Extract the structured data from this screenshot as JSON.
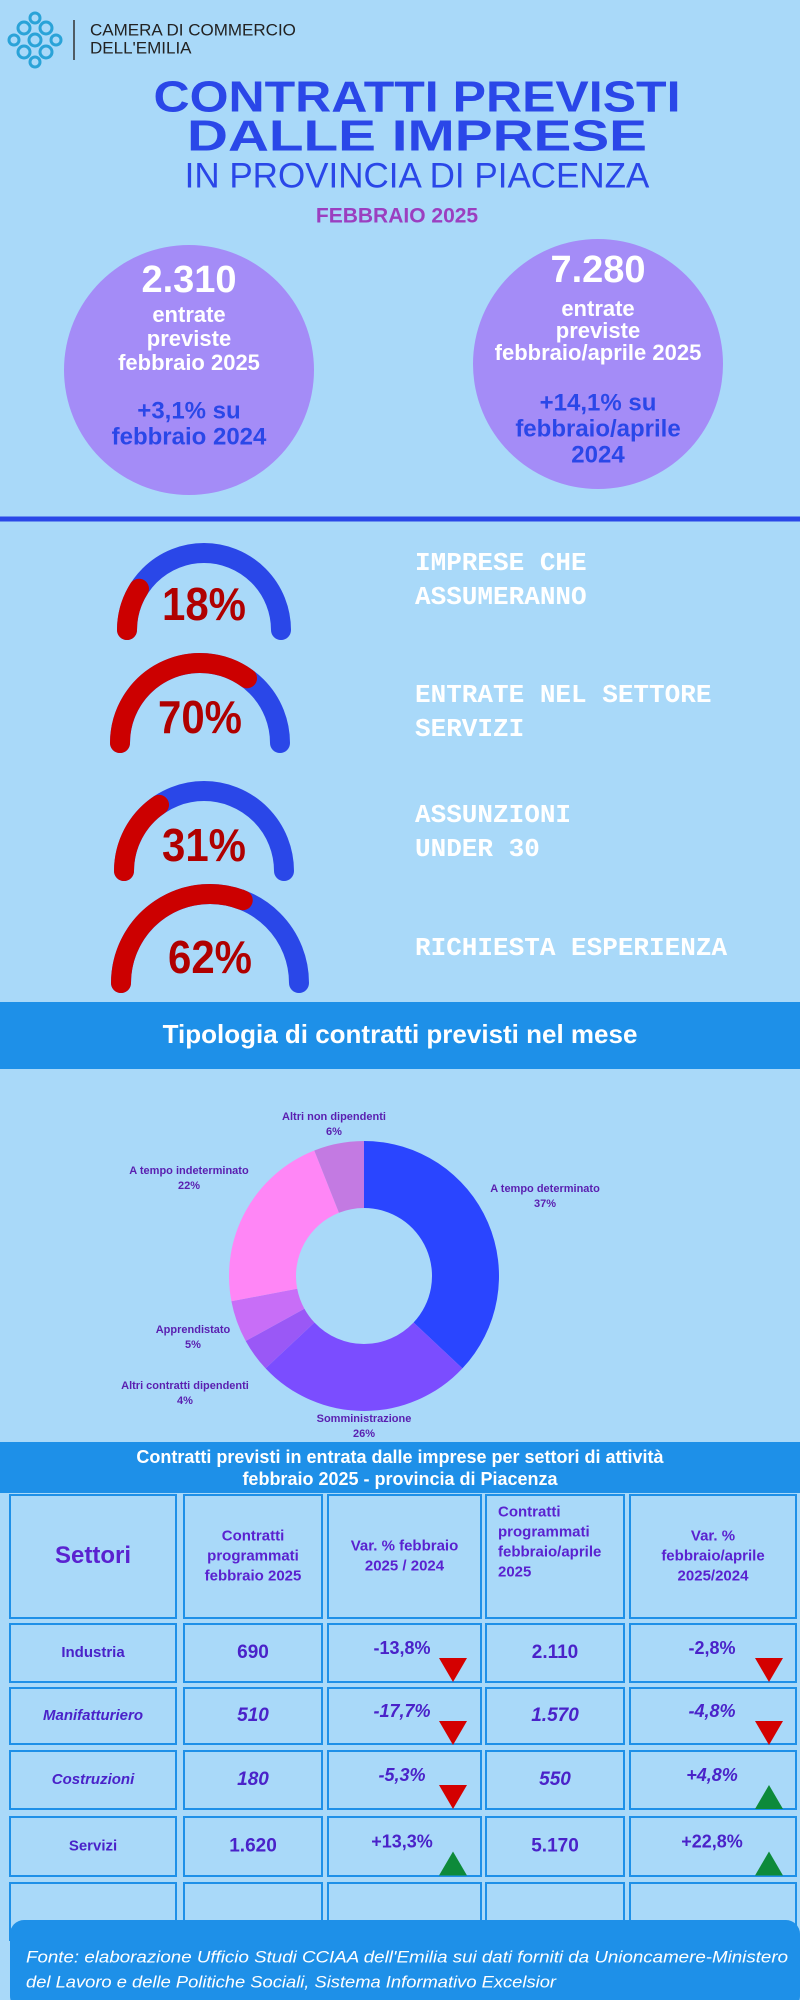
{
  "header": {
    "org": [
      "CAMERA DI COMMERCIO",
      "DELL'EMILIA"
    ],
    "title": [
      "CONTRATTI PREVISTI",
      "DALLE IMPRESE"
    ],
    "subtitle": "IN PROVINCIA DI PIACENZA",
    "period": "FEBBRAIO 2025"
  },
  "highlights": [
    {
      "value": "2.310",
      "lines": [
        "entrate",
        "previste",
        "febbraio 2025"
      ],
      "change": [
        "+3,1% su",
        "febbraio 2024"
      ]
    },
    {
      "value": "7.280",
      "lines": [
        "entrate",
        "previste",
        "febbraio/aprile 2025"
      ],
      "change": [
        "+14,1% su",
        "febbraio/aprile",
        "2024"
      ]
    }
  ],
  "gauges": {
    "values": [
      18,
      70,
      31,
      62
    ],
    "value_labels": [
      "18%",
      "70%",
      "31%",
      "62%"
    ],
    "labels": [
      [
        "IMPRESE CHE",
        "ASSUMERANNO"
      ],
      [
        "ENTRATE NEL SETTORE",
        "SERVIZI"
      ],
      [
        "ASSUNZIONI",
        "UNDER 30"
      ],
      [
        "RICHIESTA ESPERIENZA"
      ]
    ],
    "colors": [
      "#cc0000",
      "#2a47e8"
    ]
  },
  "chart_data": {
    "type": "pie",
    "title": "Tipologia di contratti previsti nel mese",
    "categories": [
      "A tempo determinato",
      "Somministrazione",
      "Altri contratti dipendenti",
      "Apprendistato",
      "A tempo indeterminato",
      "Altri non dipendenti"
    ],
    "values": [
      37,
      26,
      4,
      5,
      22,
      6
    ],
    "value_labels": [
      "37%",
      "26%",
      "4%",
      "5%",
      "22%",
      "6%"
    ],
    "colors": [
      "#2a45ff",
      "#7b4dff",
      "#9a58f6",
      "#c86ef7",
      "#ff86f6",
      "#c37ae2"
    ]
  },
  "table": {
    "title": [
      "Contratti previsti in entrata dalle imprese per settori di attività",
      "febbraio 2025 - provincia di Piacenza"
    ],
    "header": [
      [
        "Settori"
      ],
      [
        "Contratti",
        "programmati",
        "febbraio 2025"
      ],
      [
        "Var. % febbraio",
        "2025 / 2024"
      ],
      [
        "Contratti",
        "programmati",
        "febbraio/aprile",
        "2025"
      ],
      [
        "Var. %",
        "febbraio/aprile",
        "2025/2024"
      ]
    ],
    "rows": [
      {
        "cells": [
          "Industria",
          "690",
          "-13,8%",
          "2.110",
          "-2,8%"
        ],
        "italic": false
      },
      {
        "cells": [
          "Manifatturiero",
          "510",
          "-17,7%",
          "1.570",
          "-4,8%"
        ],
        "italic": true
      },
      {
        "cells": [
          "Costruzioni",
          "180",
          "-5,3%",
          "550",
          "+4,8%"
        ],
        "italic": true
      },
      {
        "cells": [
          "Servizi",
          "1.620",
          "+13,3%",
          "5.170",
          "+22,8%"
        ],
        "italic": false
      }
    ]
  },
  "footer": [
    "Fonte: elaborazione Ufficio Studi CCIAA dell'Emilia sui dati forniti da Unioncamere-Ministero",
    "del Lavoro e delle Politiche Sociali, Sistema Informativo Excelsior"
  ]
}
